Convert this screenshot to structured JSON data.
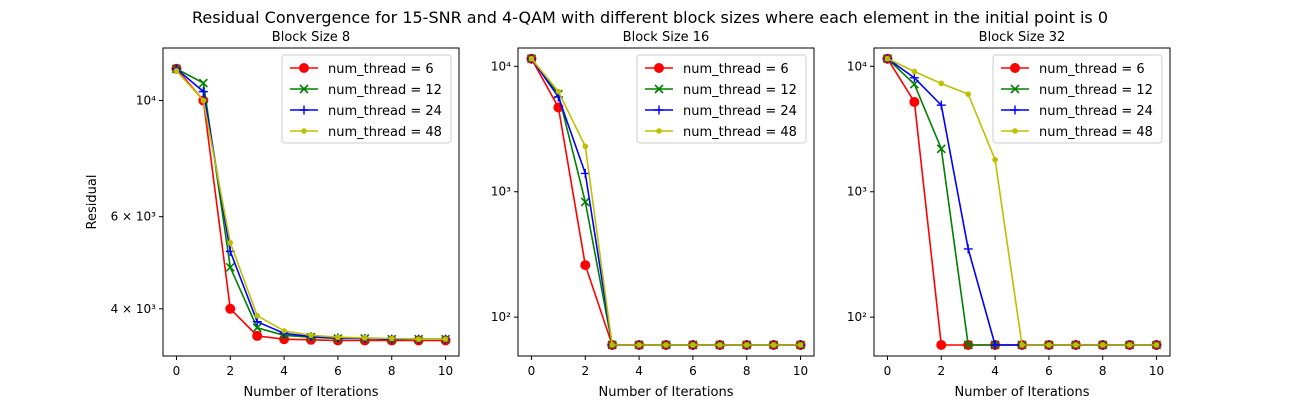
{
  "figure": {
    "title": "Residual Convergence for 15-SNR and 4-QAM with different block sizes where each element in the initial point is 0"
  },
  "series_styles": [
    {
      "name": "num_thread = 6",
      "color": "#ff0000",
      "marker": "circle"
    },
    {
      "name": "num_thread = 12",
      "color": "#008000",
      "marker": "x"
    },
    {
      "name": "num_thread = 24",
      "color": "#0000ff",
      "marker": "plus"
    },
    {
      "name": "num_thread = 48",
      "color": "#bfbf00",
      "marker": "point"
    }
  ],
  "chart_data": [
    {
      "type": "line",
      "title": "Block Size 8",
      "xlabel": "Number of Iterations",
      "ylabel": "Residual",
      "yscale": "log",
      "xlim": [
        -0.5,
        10.5
      ],
      "ylim": [
        3250,
        12600
      ],
      "xticks": [
        0,
        2,
        4,
        6,
        8,
        10
      ],
      "xtick_labels": [
        "0",
        "2",
        "4",
        "6",
        "8",
        "10"
      ],
      "yticks": [
        4000,
        6000,
        10000
      ],
      "ytick_labels": [
        "4 × 10³",
        "6 × 10³",
        "10⁴"
      ],
      "legend": "top-right",
      "x": [
        0,
        1,
        2,
        3,
        4,
        5,
        6,
        7,
        8,
        9,
        10
      ],
      "series": [
        {
          "name": "num_thread = 6",
          "values": [
            11500,
            10000,
            4000,
            3550,
            3500,
            3490,
            3480,
            3480,
            3480,
            3480,
            3480
          ]
        },
        {
          "name": "num_thread = 12",
          "values": [
            11500,
            10800,
            4800,
            3680,
            3560,
            3530,
            3510,
            3510,
            3500,
            3500,
            3500
          ]
        },
        {
          "name": "num_thread = 24",
          "values": [
            11500,
            10400,
            5150,
            3780,
            3590,
            3540,
            3520,
            3510,
            3500,
            3500,
            3500
          ]
        },
        {
          "name": "num_thread = 48",
          "values": [
            11400,
            10000,
            5350,
            3880,
            3630,
            3560,
            3530,
            3520,
            3510,
            3500,
            3500
          ]
        }
      ]
    },
    {
      "type": "line",
      "title": "Block Size 16",
      "xlabel": "Number of Iterations",
      "ylabel": "",
      "yscale": "log",
      "xlim": [
        -0.5,
        10.5
      ],
      "ylim": [
        49,
        14000
      ],
      "xticks": [
        0,
        2,
        4,
        6,
        8,
        10
      ],
      "xtick_labels": [
        "0",
        "2",
        "4",
        "6",
        "8",
        "10"
      ],
      "yticks": [
        100,
        1000,
        10000
      ],
      "ytick_labels": [
        "10²",
        "10³",
        "10⁴"
      ],
      "legend": "top-right",
      "x": [
        0,
        1,
        2,
        3,
        4,
        5,
        6,
        7,
        8,
        9,
        10
      ],
      "series": [
        {
          "name": "num_thread = 6",
          "values": [
            11500,
            4700,
            260,
            60,
            60,
            60,
            60,
            60,
            60,
            60,
            60
          ]
        },
        {
          "name": "num_thread = 12",
          "values": [
            11500,
            6000,
            830,
            60,
            60,
            60,
            60,
            60,
            60,
            60,
            60
          ]
        },
        {
          "name": "num_thread = 24",
          "values": [
            11500,
            5700,
            1400,
            60,
            60,
            60,
            60,
            60,
            60,
            60,
            60
          ]
        },
        {
          "name": "num_thread = 48",
          "values": [
            11500,
            6300,
            2300,
            60,
            60,
            60,
            60,
            60,
            60,
            60,
            60
          ]
        }
      ]
    },
    {
      "type": "line",
      "title": "Block Size 32",
      "xlabel": "Number of Iterations",
      "ylabel": "",
      "yscale": "log",
      "xlim": [
        -0.5,
        10.5
      ],
      "ylim": [
        49,
        14000
      ],
      "xticks": [
        0,
        2,
        4,
        6,
        8,
        10
      ],
      "xtick_labels": [
        "0",
        "2",
        "4",
        "6",
        "8",
        "10"
      ],
      "yticks": [
        100,
        1000,
        10000
      ],
      "ytick_labels": [
        "10²",
        "10³",
        "10⁴"
      ],
      "legend": "top-right",
      "x": [
        0,
        1,
        2,
        3,
        4,
        5,
        6,
        7,
        8,
        9,
        10
      ],
      "series": [
        {
          "name": "num_thread = 6",
          "values": [
            11500,
            5200,
            60,
            60,
            60,
            60,
            60,
            60,
            60,
            60,
            60
          ]
        },
        {
          "name": "num_thread = 12",
          "values": [
            11500,
            7200,
            2200,
            60,
            60,
            60,
            60,
            60,
            60,
            60,
            60
          ]
        },
        {
          "name": "num_thread = 24",
          "values": [
            11500,
            8100,
            4900,
            350,
            60,
            60,
            60,
            60,
            60,
            60,
            60
          ]
        },
        {
          "name": "num_thread = 48",
          "values": [
            11500,
            9100,
            7300,
            6000,
            1800,
            60,
            60,
            60,
            60,
            60,
            60
          ]
        }
      ]
    }
  ]
}
